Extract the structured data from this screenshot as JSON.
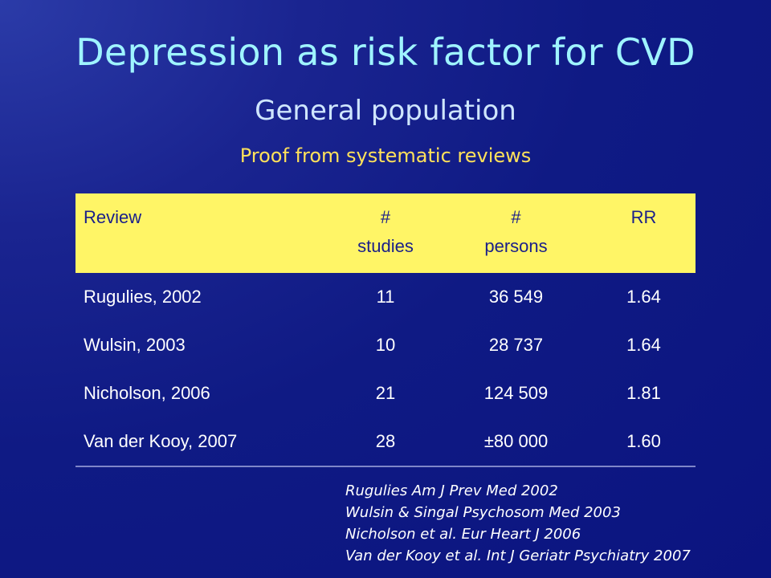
{
  "slide": {
    "title": "Depression as risk factor for CVD",
    "subtitle": "General population",
    "subsubtitle": "Proof from systematic reviews"
  },
  "table": {
    "headers": [
      {
        "line1": "Review",
        "line2": ""
      },
      {
        "line1": "#",
        "line2": "studies"
      },
      {
        "line1": "#",
        "line2": "persons"
      },
      {
        "line1": "RR",
        "line2": ""
      }
    ],
    "rows": [
      {
        "review": "Rugulies, 2002",
        "studies": "11",
        "persons": "36 549",
        "rr": "1.64"
      },
      {
        "review": "Wulsin, 2003",
        "studies": "10",
        "persons": "28 737",
        "rr": "1.64"
      },
      {
        "review": "Nicholson, 2006",
        "studies": "21",
        "persons": "124 509",
        "rr": "1.81"
      },
      {
        "review": "Van der Kooy, 2007",
        "studies": "28",
        "persons": "±80 000",
        "rr": "1.60"
      }
    ]
  },
  "references": [
    "Rugulies Am J Prev Med 2002",
    "Wulsin & Singal Psychosom Med 2003",
    "Nicholson et al. Eur Heart J 2006",
    "Van der Kooy et al. Int J Geriatr Psychiatry 2007"
  ],
  "colors": {
    "background": "#0f1a84",
    "title": "#9ff4ff",
    "subtitle": "#cfe6ff",
    "highlight": "#ffe15a",
    "table_header_bg": "#fff566",
    "table_header_text": "#1a1f8a",
    "body_text": "#ffffff"
  }
}
